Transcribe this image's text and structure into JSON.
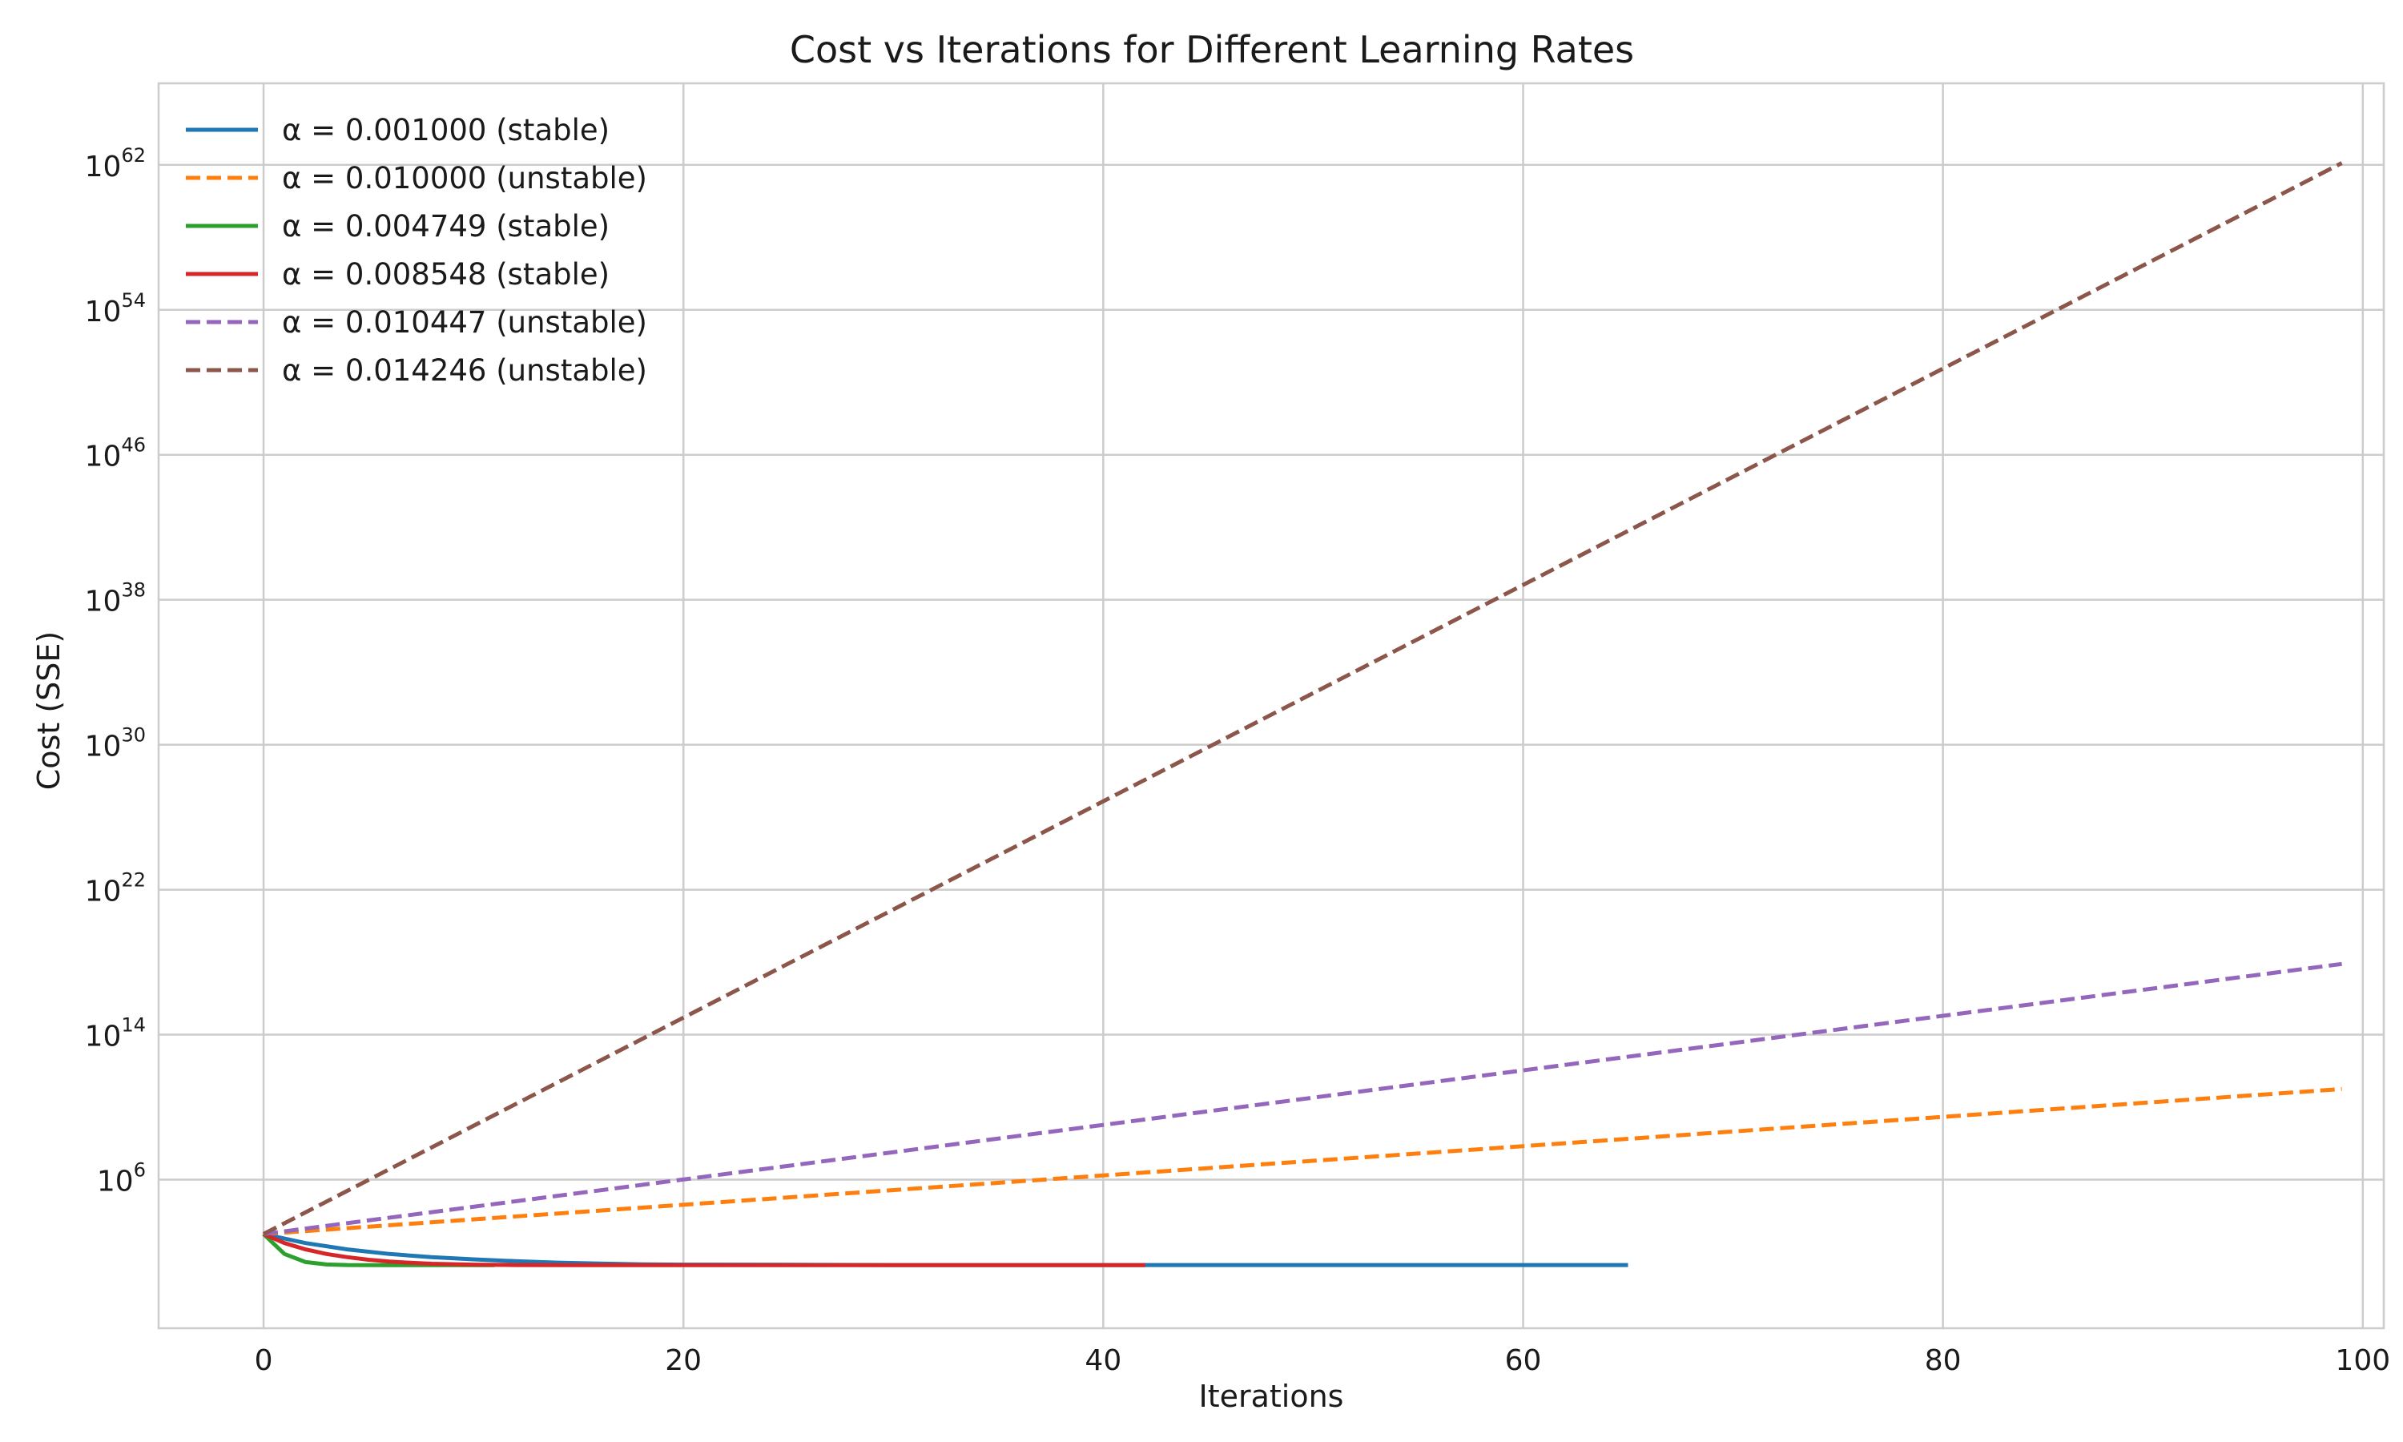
{
  "chart_data": {
    "type": "line",
    "title": "Cost vs Iterations for Different Learning Rates",
    "xlabel": "Iterations",
    "ylabel": "Cost (SSE)",
    "xlim": [
      -5,
      101
    ],
    "ylim_log10": [
      -2.2,
      66.5
    ],
    "yscale": "log",
    "grid": true,
    "legend_position": "top-left",
    "x_ticks": [
      0,
      20,
      40,
      60,
      80,
      100
    ],
    "y_ticks": [
      {
        "base": "10",
        "exp": "6",
        "log10": 6
      },
      {
        "base": "10",
        "exp": "14",
        "log10": 14
      },
      {
        "base": "10",
        "exp": "22",
        "log10": 22
      },
      {
        "base": "10",
        "exp": "30",
        "log10": 30
      },
      {
        "base": "10",
        "exp": "38",
        "log10": 38
      },
      {
        "base": "10",
        "exp": "46",
        "log10": 46
      },
      {
        "base": "10",
        "exp": "54",
        "log10": 54
      },
      {
        "base": "10",
        "exp": "62",
        "log10": 62
      }
    ],
    "series": [
      {
        "name": "α = 0.001000 (stable)",
        "color": "#1f77b4",
        "dashed": false,
        "x_end": 65,
        "points": [
          [
            0,
            3.0
          ],
          [
            2,
            2.5
          ],
          [
            4,
            2.15
          ],
          [
            6,
            1.9
          ],
          [
            8,
            1.72
          ],
          [
            10,
            1.6
          ],
          [
            12,
            1.5
          ],
          [
            14,
            1.42
          ],
          [
            16,
            1.37
          ],
          [
            18,
            1.33
          ],
          [
            20,
            1.31
          ],
          [
            25,
            1.3
          ],
          [
            30,
            1.29
          ],
          [
            40,
            1.29
          ],
          [
            50,
            1.29
          ],
          [
            65,
            1.29
          ]
        ]
      },
      {
        "name": "α = 0.010000 (unstable)",
        "color": "#ff7f0e",
        "dashed": true,
        "x_end": 99,
        "points": [
          [
            0,
            3.0
          ],
          [
            99,
            11.0
          ]
        ]
      },
      {
        "name": "α = 0.004749 (stable)",
        "color": "#2ca02c",
        "dashed": false,
        "x_end": 11,
        "points": [
          [
            0,
            3.0
          ],
          [
            1,
            1.9
          ],
          [
            2,
            1.45
          ],
          [
            3,
            1.32
          ],
          [
            4,
            1.29
          ],
          [
            6,
            1.28
          ],
          [
            11,
            1.28
          ]
        ]
      },
      {
        "name": "α = 0.008548 (stable)",
        "color": "#d62728",
        "dashed": false,
        "x_end": 42,
        "points": [
          [
            0,
            3.0
          ],
          [
            1,
            2.5
          ],
          [
            2,
            2.15
          ],
          [
            3,
            1.9
          ],
          [
            4,
            1.72
          ],
          [
            5,
            1.58
          ],
          [
            6,
            1.48
          ],
          [
            7,
            1.41
          ],
          [
            8,
            1.36
          ],
          [
            10,
            1.31
          ],
          [
            12,
            1.29
          ],
          [
            15,
            1.28
          ],
          [
            20,
            1.28
          ],
          [
            42,
            1.28
          ]
        ]
      },
      {
        "name": "α = 0.010447 (unstable)",
        "color": "#9467bd",
        "dashed": true,
        "x_end": 99,
        "points": [
          [
            0,
            3.0
          ],
          [
            99,
            17.9
          ]
        ]
      },
      {
        "name": "α = 0.014246 (unstable)",
        "color": "#8c564b",
        "dashed": true,
        "x_end": 99,
        "points": [
          [
            0,
            3.0
          ],
          [
            99,
            62.1
          ]
        ]
      }
    ]
  }
}
